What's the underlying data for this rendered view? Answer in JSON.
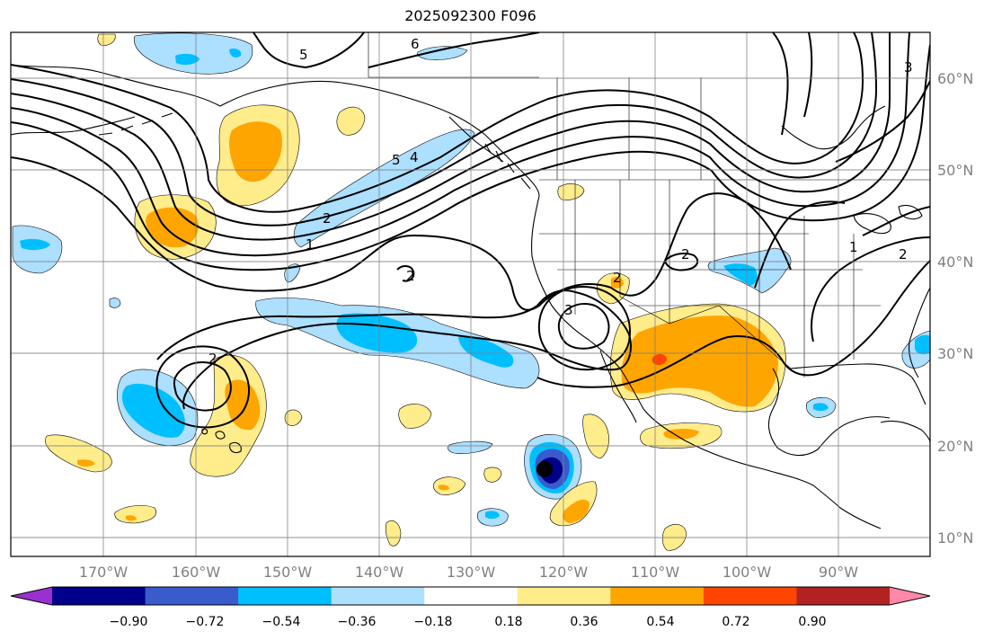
{
  "title": "2025092300 F096",
  "lon_labels": [
    "170°W",
    "160°W",
    "150°W",
    "140°W",
    "130°W",
    "120°W",
    "110°W",
    "100°W",
    "90°W"
  ],
  "lat_labels": [
    "60°N",
    "50°N",
    "40°N",
    "30°N",
    "20°N",
    "10°N"
  ],
  "colorbar": {
    "ticks": [
      "−0.90",
      "−0.72",
      "−0.54",
      "−0.36",
      "−0.18",
      "0.18",
      "0.36",
      "0.54",
      "0.72",
      "0.90"
    ],
    "colors": [
      "#9b30d0",
      "#00008b",
      "#3a5bcc",
      "#00bfff",
      "#addfff",
      "#ffffff",
      "#ffec8b",
      "#ffa500",
      "#ff4500",
      "#b22222",
      "#ff88aa"
    ]
  },
  "contour_labels": [
    "5",
    "6",
    "3",
    "5",
    "4",
    "2",
    "1",
    "2",
    "2",
    "2",
    "3",
    "2",
    "1",
    "2"
  ],
  "fill_colors": {
    "light_blue": "#addfff",
    "blue": "#00bfff",
    "mid_blue": "#3a5bcc",
    "navy": "#00008b",
    "yellow": "#ffec8b",
    "orange": "#ffa500",
    "red": "#ff4500"
  }
}
